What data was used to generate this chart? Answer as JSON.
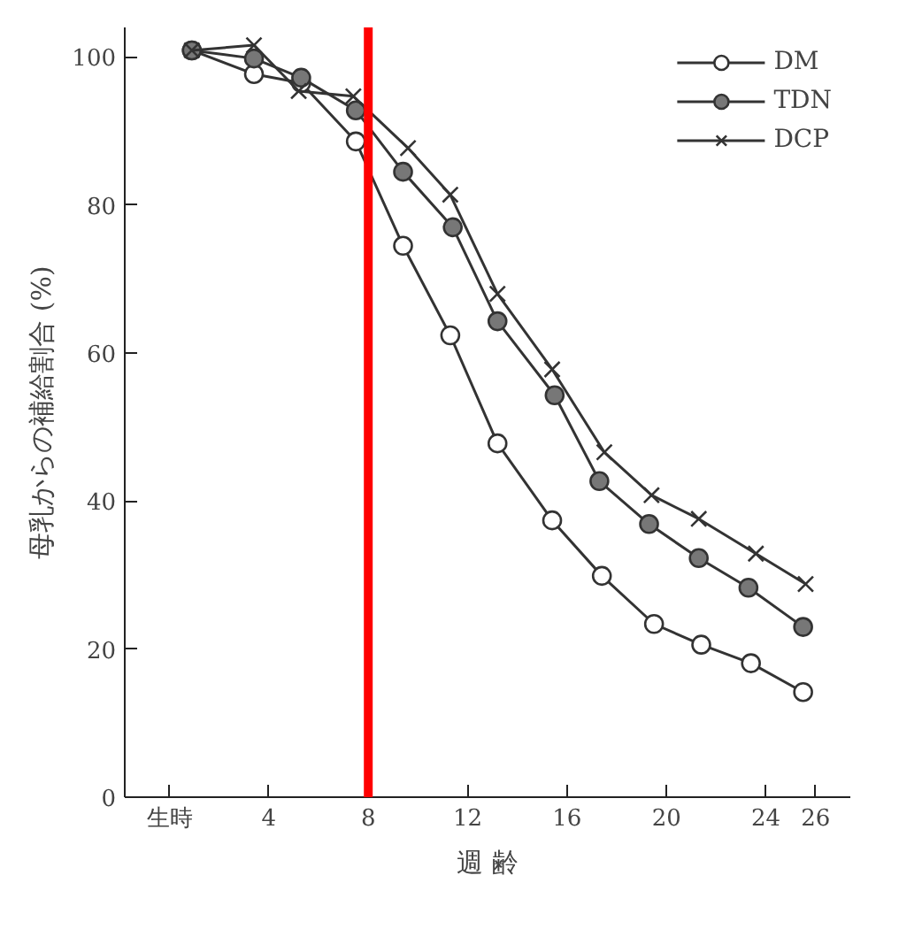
{
  "chart_data": {
    "type": "line",
    "xlabel": "週 齢",
    "ylabel": "母乳からの補給割合 (%)",
    "xlim": [
      -1.8,
      27.4
    ],
    "ylim": [
      0,
      104
    ],
    "xticks": [
      {
        "value": 0,
        "label": "生時"
      },
      4,
      8,
      12,
      16,
      20,
      24,
      26
    ],
    "yticks": [
      0,
      20,
      40,
      60,
      80,
      100
    ],
    "grid": false,
    "legend": "top right",
    "line_style": "solid",
    "series": [
      {
        "name": "DM",
        "color": "#ffffff",
        "marker": "circle",
        "x": [
          0.9,
          3.4,
          5.3,
          7.5,
          9.4,
          11.3,
          13.2,
          15.4,
          17.4,
          19.5,
          21.4,
          23.4,
          25.5
        ],
        "values": [
          100.9,
          97.7,
          96.5,
          88.6,
          74.5,
          62.4,
          47.8,
          37.4,
          29.9,
          23.4,
          20.6,
          18.1,
          14.2
        ]
      },
      {
        "name": "TDN",
        "color": "#777777",
        "marker": "circle",
        "x": [
          0.9,
          3.4,
          5.3,
          7.5,
          9.4,
          11.4,
          13.2,
          15.5,
          17.3,
          19.3,
          21.3,
          23.3,
          25.5
        ],
        "values": [
          100.9,
          99.8,
          97.2,
          92.8,
          84.5,
          77.0,
          64.3,
          54.3,
          42.7,
          36.9,
          32.3,
          28.3,
          23.0
        ]
      },
      {
        "name": "DCP",
        "color": "#333333",
        "marker": "cross",
        "x": [
          0.9,
          3.4,
          5.2,
          7.4,
          9.6,
          11.3,
          13.2,
          15.4,
          17.5,
          19.4,
          21.3,
          23.6,
          25.6
        ],
        "values": [
          100.9,
          101.6,
          95.4,
          94.7,
          87.7,
          81.4,
          68.0,
          57.8,
          46.6,
          40.8,
          37.6,
          32.9,
          28.8
        ]
      }
    ],
    "ref_lines": [
      {
        "axis": "x",
        "value": 8,
        "color": "#ff0000",
        "line_style": "solid"
      }
    ]
  }
}
